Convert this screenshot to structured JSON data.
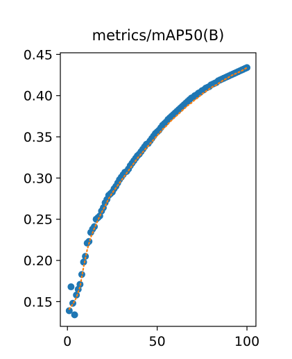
{
  "chart_data": {
    "type": "scatter",
    "title": "metrics/mAP50(B)",
    "xlabel": "",
    "ylabel": "",
    "xlim": [
      -3.95,
      105
    ],
    "ylim": [
      0.12,
      0.452
    ],
    "x_ticks": [
      0,
      50,
      100
    ],
    "x_tick_labels": [
      "0",
      "50",
      "100"
    ],
    "y_ticks": [
      0.15,
      0.2,
      0.25,
      0.3,
      0.35,
      0.4,
      0.45
    ],
    "y_tick_labels": [
      "0.15",
      "0.20",
      "0.25",
      "0.30",
      "0.35",
      "0.40",
      "0.45"
    ],
    "grid": false,
    "legend": "none",
    "colors": {
      "points": "#1f77b4",
      "smooth": "#ff7f0e"
    },
    "series": [
      {
        "type": "scatter",
        "x": [
          1,
          2,
          3,
          4,
          5,
          6,
          7,
          8,
          9,
          10,
          11,
          12,
          13,
          14,
          15,
          16,
          17,
          18,
          19,
          20,
          21,
          22,
          23,
          24,
          25,
          26,
          27,
          28,
          29,
          30,
          31,
          32,
          33,
          34,
          35,
          36,
          37,
          38,
          39,
          40,
          41,
          42,
          43,
          44,
          45,
          46,
          47,
          48,
          49,
          50,
          51,
          52,
          53,
          54,
          55,
          56,
          57,
          58,
          59,
          60,
          61,
          62,
          63,
          64,
          65,
          66,
          67,
          68,
          69,
          70,
          71,
          72,
          73,
          74,
          75,
          76,
          77,
          78,
          79,
          80,
          81,
          82,
          83,
          84,
          85,
          86,
          87,
          88,
          89,
          90,
          91,
          92,
          93,
          94,
          95,
          96,
          97,
          98,
          99,
          100
        ],
        "y": [
          0.139,
          0.168,
          0.148,
          0.134,
          0.158,
          0.165,
          0.171,
          0.183,
          0.198,
          0.205,
          0.221,
          0.223,
          0.234,
          0.238,
          0.241,
          0.25,
          0.252,
          0.254,
          0.26,
          0.264,
          0.27,
          0.274,
          0.279,
          0.281,
          0.283,
          0.287,
          0.29,
          0.294,
          0.298,
          0.301,
          0.304,
          0.307,
          0.308,
          0.311,
          0.315,
          0.318,
          0.321,
          0.324,
          0.327,
          0.329,
          0.332,
          0.335,
          0.338,
          0.341,
          0.342,
          0.345,
          0.348,
          0.351,
          0.354,
          0.356,
          0.358,
          0.361,
          0.364,
          0.366,
          0.368,
          0.371,
          0.373,
          0.375,
          0.377,
          0.379,
          0.381,
          0.383,
          0.385,
          0.387,
          0.389,
          0.391,
          0.393,
          0.395,
          0.397,
          0.398,
          0.4,
          0.401,
          0.403,
          0.404,
          0.406,
          0.407,
          0.409,
          0.41,
          0.411,
          0.413,
          0.414,
          0.415,
          0.416,
          0.418,
          0.419,
          0.42,
          0.421,
          0.422,
          0.423,
          0.424,
          0.425,
          0.426,
          0.427,
          0.428,
          0.429,
          0.43,
          0.431,
          0.432,
          0.433,
          0.434
        ]
      },
      {
        "type": "line",
        "style": "dotted",
        "x": [
          1,
          3,
          5,
          7,
          9,
          11,
          13,
          15,
          17,
          19,
          21,
          23,
          25,
          27,
          29,
          31,
          33,
          35,
          37,
          39,
          41,
          43,
          45,
          47,
          49,
          51,
          53,
          55,
          57,
          59,
          61,
          63,
          65,
          67,
          69,
          71,
          73,
          75,
          77,
          79,
          81,
          83,
          85,
          87,
          89,
          91,
          93,
          95,
          97,
          100
        ],
        "y": [
          0.141,
          0.147,
          0.155,
          0.168,
          0.192,
          0.213,
          0.228,
          0.239,
          0.249,
          0.258,
          0.266,
          0.275,
          0.282,
          0.288,
          0.294,
          0.3,
          0.306,
          0.312,
          0.318,
          0.324,
          0.329,
          0.334,
          0.339,
          0.344,
          0.349,
          0.354,
          0.359,
          0.363,
          0.368,
          0.372,
          0.376,
          0.38,
          0.384,
          0.388,
          0.391,
          0.395,
          0.398,
          0.402,
          0.405,
          0.408,
          0.411,
          0.413,
          0.416,
          0.419,
          0.421,
          0.424,
          0.426,
          0.428,
          0.43,
          0.434
        ]
      }
    ]
  }
}
